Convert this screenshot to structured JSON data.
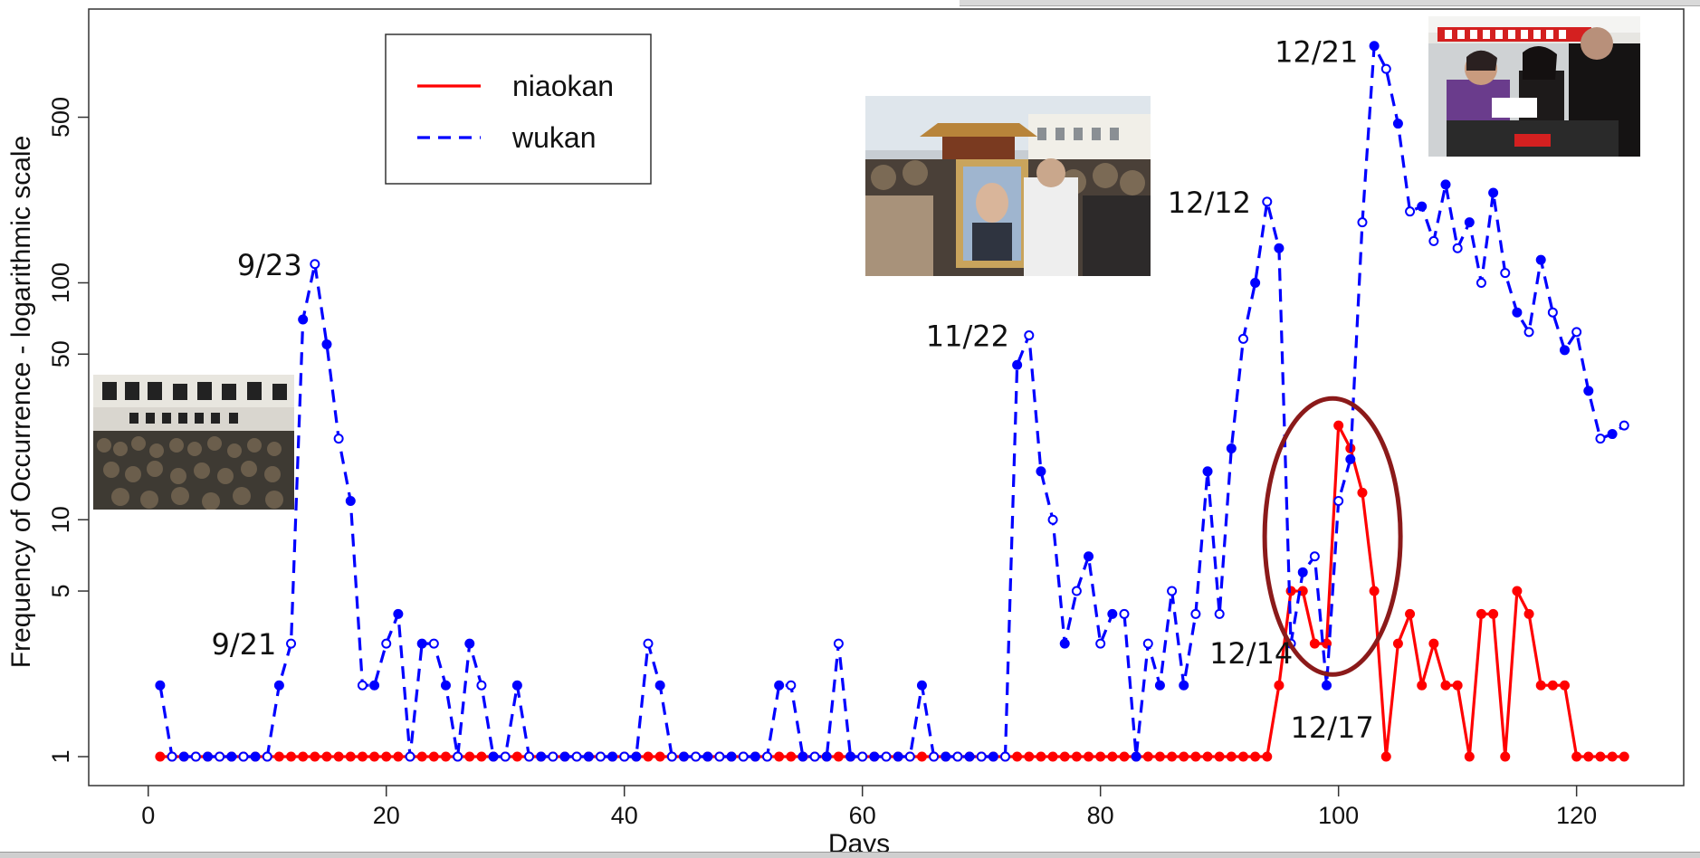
{
  "chart_data": {
    "type": "line",
    "title": "",
    "xlabel": "Days",
    "ylabel": "Frequency of Occurrence - logarithmic scale",
    "xlim": [
      -5,
      129
    ],
    "ylim": [
      1,
      1200
    ],
    "y_scale": "log",
    "x_ticks": [
      0,
      20,
      40,
      60,
      80,
      100,
      120
    ],
    "x_tick_labels": [
      "0",
      "20",
      "40",
      "60",
      "80",
      "100",
      "120"
    ],
    "y_ticks": [
      1,
      5,
      10,
      50,
      100,
      500
    ],
    "y_tick_labels": [
      "1",
      "5",
      "10",
      "50",
      "100",
      "500"
    ],
    "legend": {
      "position": "top-left",
      "entries": [
        {
          "label": "niaokan",
          "color": "#ff0000",
          "style": "solid"
        },
        {
          "label": "wukan",
          "color": "#0000ff",
          "style": "dashed"
        }
      ]
    },
    "series": [
      {
        "name": "niaokan",
        "color": "#ff0000",
        "style": "solid",
        "x": [
          1,
          2,
          3,
          4,
          5,
          6,
          7,
          8,
          9,
          10,
          11,
          12,
          13,
          14,
          15,
          16,
          17,
          18,
          19,
          20,
          21,
          22,
          23,
          24,
          25,
          26,
          27,
          28,
          29,
          30,
          31,
          32,
          33,
          34,
          35,
          36,
          37,
          38,
          39,
          40,
          41,
          42,
          43,
          44,
          45,
          46,
          47,
          48,
          49,
          50,
          51,
          52,
          53,
          54,
          55,
          56,
          57,
          58,
          59,
          60,
          61,
          62,
          63,
          64,
          65,
          66,
          67,
          68,
          69,
          70,
          71,
          72,
          73,
          74,
          75,
          76,
          77,
          78,
          79,
          80,
          81,
          82,
          83,
          84,
          85,
          86,
          87,
          88,
          89,
          90,
          91,
          92,
          93,
          94,
          95,
          96,
          97,
          98,
          99,
          100,
          101,
          102,
          103,
          104,
          105,
          106,
          107,
          108,
          109,
          110,
          111,
          112,
          113,
          114,
          115,
          116,
          117,
          118,
          119,
          120,
          121,
          122,
          123,
          124
        ],
        "values": [
          1,
          1,
          1,
          1,
          1,
          1,
          1,
          1,
          1,
          1,
          1,
          1,
          1,
          1,
          1,
          1,
          1,
          1,
          1,
          1,
          1,
          1,
          1,
          1,
          1,
          1,
          1,
          1,
          1,
          1,
          1,
          1,
          1,
          1,
          1,
          1,
          1,
          1,
          1,
          1,
          1,
          1,
          1,
          1,
          1,
          1,
          1,
          1,
          1,
          1,
          1,
          1,
          1,
          1,
          1,
          1,
          1,
          1,
          1,
          1,
          1,
          1,
          1,
          1,
          1,
          1,
          1,
          1,
          1,
          1,
          1,
          1,
          1,
          1,
          1,
          1,
          1,
          1,
          1,
          1,
          1,
          1,
          1,
          1,
          1,
          1,
          1,
          1,
          1,
          1,
          1,
          1,
          1,
          1,
          2,
          5,
          5,
          3,
          3,
          25,
          20,
          13,
          5,
          1,
          3,
          4,
          2,
          3,
          2,
          2,
          1,
          4,
          4,
          1,
          5,
          4,
          2,
          2,
          2,
          1,
          1,
          1,
          1,
          1
        ]
      },
      {
        "name": "wukan",
        "color": "#0000ff",
        "style": "dashed",
        "x": [
          1,
          2,
          3,
          4,
          5,
          6,
          7,
          8,
          9,
          10,
          11,
          12,
          13,
          14,
          15,
          16,
          17,
          18,
          19,
          20,
          21,
          22,
          23,
          24,
          25,
          26,
          27,
          28,
          29,
          30,
          31,
          32,
          33,
          34,
          35,
          36,
          37,
          38,
          39,
          40,
          41,
          42,
          43,
          44,
          45,
          46,
          47,
          48,
          49,
          50,
          51,
          52,
          53,
          54,
          55,
          56,
          57,
          58,
          59,
          60,
          61,
          62,
          63,
          64,
          65,
          66,
          67,
          68,
          69,
          70,
          71,
          72,
          73,
          74,
          75,
          76,
          77,
          78,
          79,
          80,
          81,
          82,
          83,
          84,
          85,
          86,
          87,
          88,
          89,
          90,
          91,
          92,
          93,
          94,
          95,
          96,
          97,
          98,
          99,
          100,
          101,
          102,
          103,
          104,
          105,
          106,
          107,
          108,
          109,
          110,
          111,
          112,
          113,
          114,
          115,
          116,
          117,
          118,
          119,
          120,
          121,
          122,
          123,
          124
        ],
        "values": [
          2,
          1,
          1,
          1,
          1,
          1,
          1,
          1,
          1,
          1,
          2,
          3,
          70,
          120,
          55,
          22,
          12,
          2,
          2,
          3,
          4,
          1,
          3,
          3,
          2,
          1,
          3,
          2,
          1,
          1,
          2,
          1,
          1,
          1,
          1,
          1,
          1,
          1,
          1,
          1,
          1,
          3,
          2,
          1,
          1,
          1,
          1,
          1,
          1,
          1,
          1,
          1,
          2,
          2,
          1,
          1,
          1,
          3,
          1,
          1,
          1,
          1,
          1,
          1,
          2,
          1,
          1,
          1,
          1,
          1,
          1,
          1,
          45,
          60,
          16,
          10,
          3,
          5,
          7,
          3,
          4,
          4,
          1,
          3,
          2,
          5,
          2,
          4,
          16,
          4,
          20,
          58,
          100,
          220,
          140,
          3,
          6,
          7,
          2,
          12,
          18,
          180,
          1000,
          800,
          470,
          200,
          210,
          150,
          260,
          140,
          180,
          100,
          240,
          110,
          75,
          62,
          125,
          75,
          52,
          62,
          35,
          22,
          23,
          25
        ]
      }
    ],
    "annotations": [
      {
        "text": "9/23",
        "x": 14,
        "y": 120
      },
      {
        "text": "9/21",
        "x": 12,
        "y": 3
      },
      {
        "text": "11/22",
        "x": 74,
        "y": 60
      },
      {
        "text": "12/12",
        "x": 94,
        "y": 220
      },
      {
        "text": "12/14",
        "x": 96,
        "y": 3
      },
      {
        "text": "12/17",
        "x": 99,
        "y": 2
      },
      {
        "text": "12/21",
        "x": 103,
        "y": 1000
      }
    ],
    "highlight": {
      "shape": "ellipse",
      "color": "#8b1a1a",
      "x_center": 99.5,
      "y_center": 8.5
    }
  },
  "photos": [
    {
      "name": "protest-banner-photo"
    },
    {
      "name": "funeral-portrait-photo"
    },
    {
      "name": "ballot-box-photo"
    }
  ]
}
